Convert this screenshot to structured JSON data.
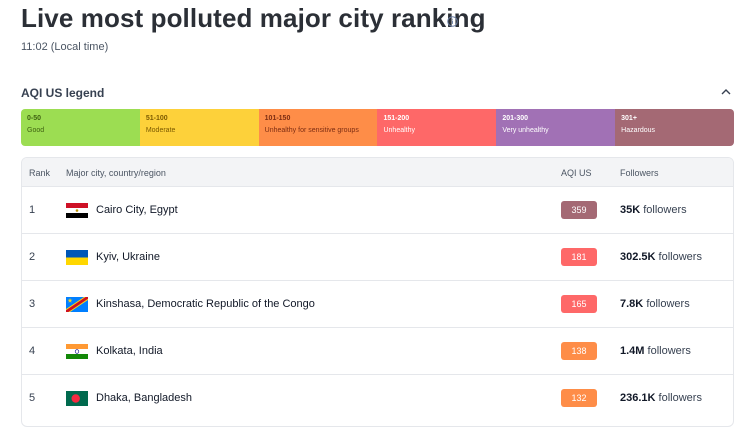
{
  "page": {
    "title": "Live most polluted major city ranking",
    "local_time": "11:02 (Local time)"
  },
  "legend": {
    "title": "AQI US legend",
    "segments": [
      {
        "range": "0-50",
        "label": "Good",
        "color": "#9cdd52",
        "text_color": "#3f6212"
      },
      {
        "range": "51-100",
        "label": "Moderate",
        "color": "#fdd13a",
        "text_color": "#7c5a00"
      },
      {
        "range": "101-150",
        "label": "Unhealthy for sensitive groups",
        "color": "#fe8d48",
        "text_color": "#7c2d12"
      },
      {
        "range": "151-200",
        "label": "Unhealthy",
        "color": "#fe6868",
        "text_color": "#ffffff"
      },
      {
        "range": "201-300",
        "label": "Very unhealthy",
        "color": "#a171b5",
        "text_color": "#ffffff"
      },
      {
        "range": "301+",
        "label": "Hazardous",
        "color": "#a46974",
        "text_color": "#ffffff"
      }
    ]
  },
  "table": {
    "headers": {
      "rank": "Rank",
      "city": "Major city, country/region",
      "aqi": "AQI US",
      "followers": "Followers"
    },
    "rows": [
      {
        "rank": "1",
        "city": "Cairo City, Egypt",
        "flag": "egypt-flag",
        "aqi": "359",
        "aqi_color": "#a46974",
        "followers_count": "35K",
        "followers_word": "followers"
      },
      {
        "rank": "2",
        "city": "Kyiv, Ukraine",
        "flag": "ukraine-flag",
        "aqi": "181",
        "aqi_color": "#fe6868",
        "followers_count": "302.5K",
        "followers_word": "followers"
      },
      {
        "rank": "3",
        "city": "Kinshasa, Democratic Republic of the Congo",
        "flag": "dr-congo-flag",
        "aqi": "165",
        "aqi_color": "#fe6868",
        "followers_count": "7.8K",
        "followers_word": "followers"
      },
      {
        "rank": "4",
        "city": "Kolkata, India",
        "flag": "india-flag",
        "aqi": "138",
        "aqi_color": "#fe8d48",
        "followers_count": "1.4M",
        "followers_word": "followers"
      },
      {
        "rank": "5",
        "city": "Dhaka, Bangladesh",
        "flag": "bangladesh-flag",
        "aqi": "132",
        "aqi_color": "#fe8d48",
        "followers_count": "236.1K",
        "followers_word": "followers"
      }
    ]
  },
  "icons": {
    "info": "info-icon",
    "collapse": "chevron-up-icon"
  }
}
